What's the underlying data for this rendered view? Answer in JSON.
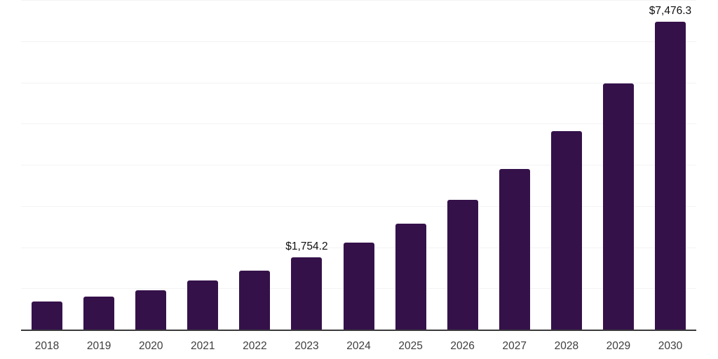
{
  "chart_data": {
    "type": "bar",
    "title": "",
    "xlabel": "",
    "ylabel": "",
    "categories": [
      "2018",
      "2019",
      "2020",
      "2021",
      "2022",
      "2023",
      "2024",
      "2025",
      "2026",
      "2027",
      "2028",
      "2029",
      "2030"
    ],
    "values": [
      680,
      800,
      950,
      1190,
      1430,
      1754.2,
      2110,
      2575,
      3155,
      3890,
      4810,
      5975,
      7476.3
    ],
    "data_labels": [
      "",
      "",
      "",
      "",
      "",
      "$1,754.2",
      "",
      "",
      "",
      "",
      "",
      "",
      "$7,476.3"
    ],
    "ylim": [
      0,
      8000
    ],
    "gridline_interval": 1000,
    "grid": "horizontal",
    "legend": "none",
    "y_axis_tick_labels": "none"
  },
  "styles": {
    "bar_color": "#35114A",
    "gridline_color": "#f3f3f3",
    "axis_line_color": "#3a3a3a",
    "value_label_color": "#101010",
    "x_tick_label_color": "#3d3d3d",
    "background_color": "#ffffff"
  }
}
